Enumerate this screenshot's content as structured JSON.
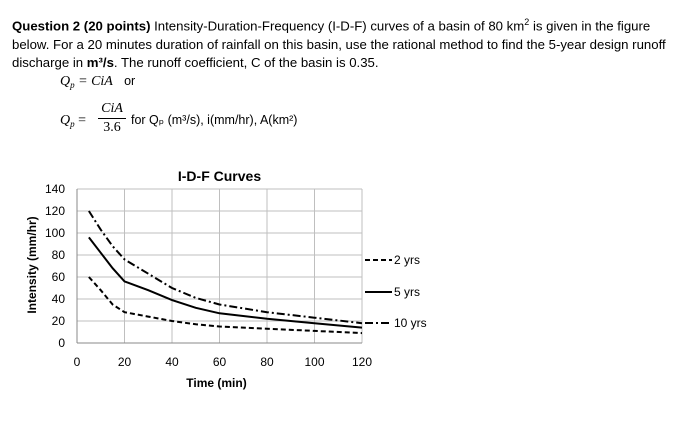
{
  "question": {
    "number": "Question 2 (20 points)",
    "text_1": " Intensity-Duration-Frequency (I-D-F) curves of a basin of 80 km",
    "sup": "2",
    "text_2": " is given in the figure below. For a 20 minutes duration of rainfall on this basin, use the rational method to find the 5-year design runoff discharge in ",
    "unit_bold": "m³/s",
    "text_3": ". The runoff coefficient, C of the basin is 0.35."
  },
  "formula": {
    "lhs": "Q",
    "lhs_sub": "p",
    "eq1_rhs": "= CiA",
    "or_word": "or",
    "frac_num": "CiA",
    "frac_den": "3.6",
    "units_note": "for Qₚ (m³/s), i(mm/hr), A(km²)"
  },
  "chart_data": {
    "type": "line",
    "title": "I-D-F Curves",
    "xlabel": "Time (min)",
    "ylabel": "Intensity (mm/hr)",
    "xlim": [
      0,
      120
    ],
    "ylim": [
      0,
      140
    ],
    "xticks": [
      0,
      20,
      40,
      60,
      80,
      100,
      120
    ],
    "yticks": [
      0,
      20,
      40,
      60,
      80,
      100,
      120,
      140
    ],
    "grid": true,
    "legend_position": "right",
    "series": [
      {
        "name": "2 yrs",
        "style": "dashed",
        "x": [
          5,
          10,
          15,
          20,
          30,
          40,
          50,
          60,
          80,
          100,
          120
        ],
        "y": [
          60,
          48,
          35,
          28,
          24,
          20,
          17,
          15,
          13,
          11,
          9
        ]
      },
      {
        "name": "5 yrs",
        "style": "solid",
        "x": [
          5,
          10,
          15,
          20,
          30,
          40,
          50,
          60,
          80,
          100,
          120
        ],
        "y": [
          96,
          82,
          68,
          56,
          48,
          39,
          32,
          27,
          22,
          18,
          14
        ]
      },
      {
        "name": "10 yrs",
        "style": "dashdot",
        "x": [
          5,
          10,
          15,
          20,
          30,
          40,
          50,
          60,
          80,
          100,
          120
        ],
        "y": [
          120,
          103,
          88,
          76,
          63,
          50,
          41,
          35,
          28,
          23,
          18
        ]
      }
    ]
  }
}
